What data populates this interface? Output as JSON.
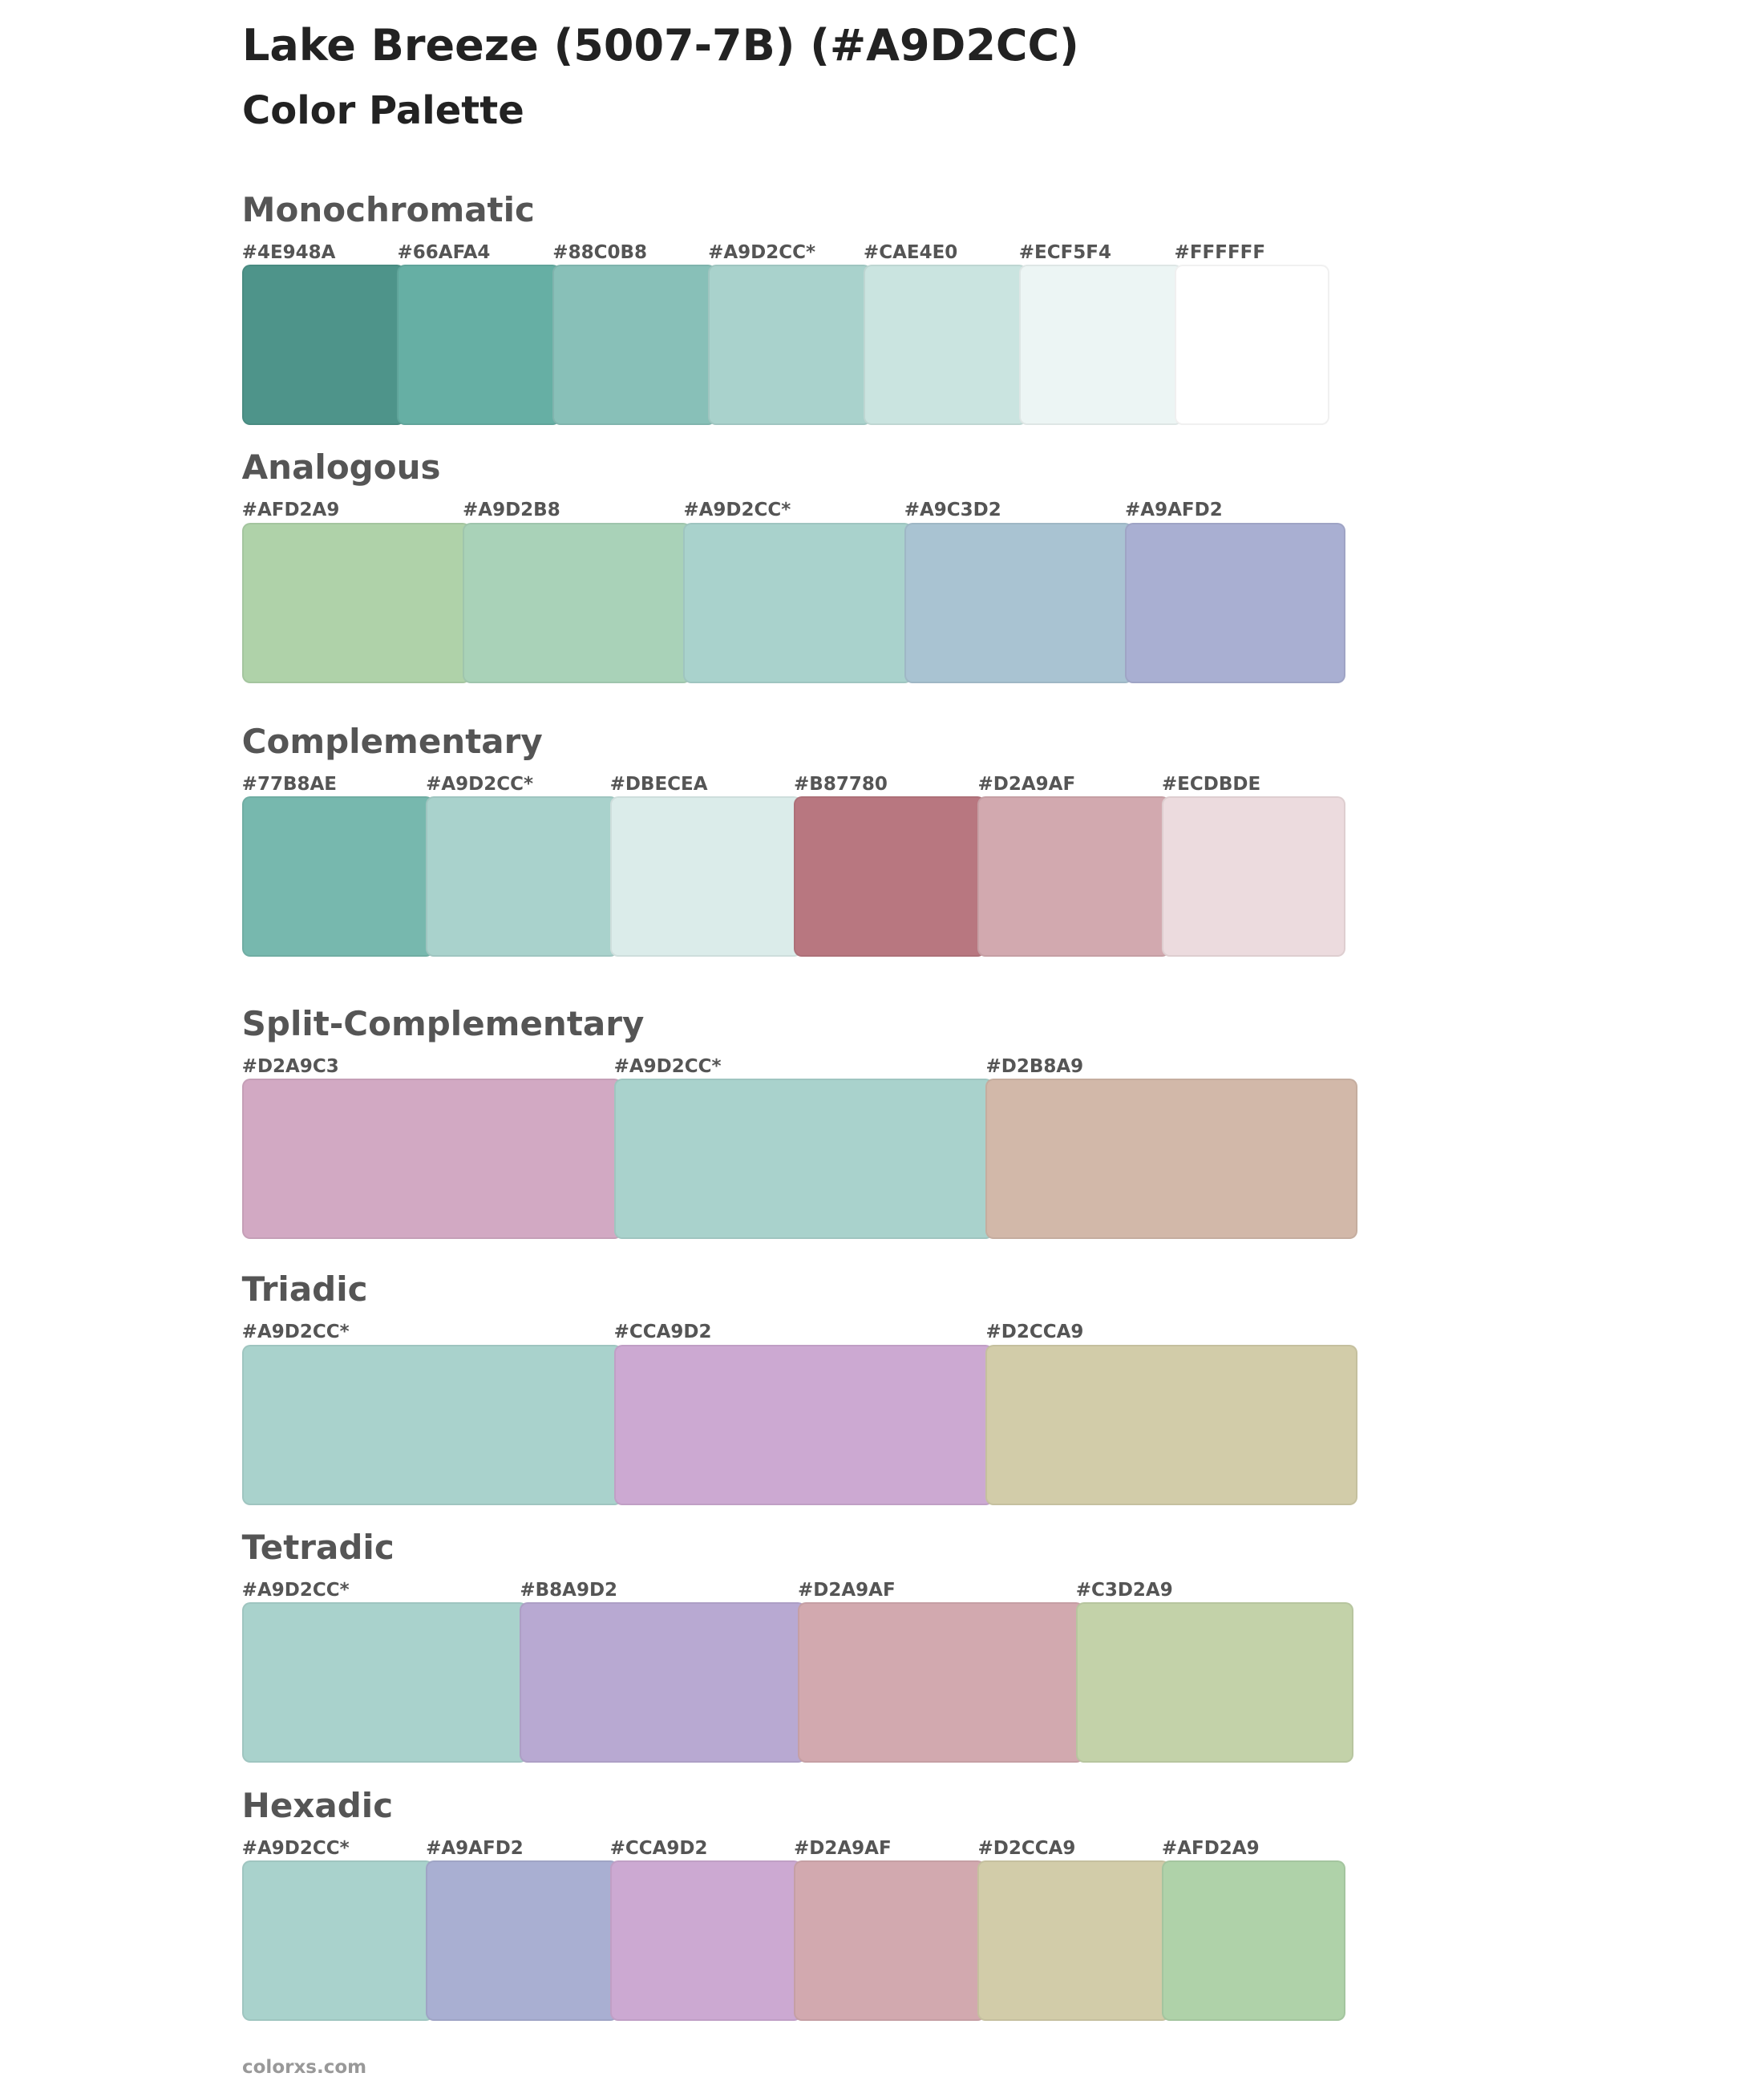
{
  "header": {
    "title": "Lake Breeze (5007-7B) (#A9D2CC)",
    "subtitle": "Color Palette"
  },
  "sections": [
    {
      "name": "Monochromatic",
      "swatches": [
        {
          "label": "#4E948A",
          "color": "#4E948A"
        },
        {
          "label": "#66AFA4",
          "color": "#66AFA4"
        },
        {
          "label": "#88C0B8",
          "color": "#88C0B8"
        },
        {
          "label": "#A9D2CC*",
          "color": "#A9D2CC"
        },
        {
          "label": "#CAE4E0",
          "color": "#CAE4E0"
        },
        {
          "label": "#ECF5F4",
          "color": "#ECF5F4"
        },
        {
          "label": "#FFFFFF",
          "color": "#FFFFFF"
        }
      ]
    },
    {
      "name": "Analogous",
      "swatches": [
        {
          "label": "#AFD2A9",
          "color": "#AFD2A9"
        },
        {
          "label": "#A9D2B8",
          "color": "#A9D2B8"
        },
        {
          "label": "#A9D2CC*",
          "color": "#A9D2CC"
        },
        {
          "label": "#A9C3D2",
          "color": "#A9C3D2"
        },
        {
          "label": "#A9AFD2",
          "color": "#A9AFD2"
        }
      ]
    },
    {
      "name": "Complementary",
      "swatches": [
        {
          "label": "#77B8AE",
          "color": "#77B8AE"
        },
        {
          "label": "#A9D2CC*",
          "color": "#A9D2CC"
        },
        {
          "label": "#DBECEA",
          "color": "#DBECEA"
        },
        {
          "label": "#B87780",
          "color": "#B87780"
        },
        {
          "label": "#D2A9AF",
          "color": "#D2A9AF"
        },
        {
          "label": "#ECDBDE",
          "color": "#ECDBDE"
        }
      ]
    },
    {
      "name": "Split-Complementary",
      "swatches": [
        {
          "label": "#D2A9C3",
          "color": "#D2A9C3"
        },
        {
          "label": "#A9D2CC*",
          "color": "#A9D2CC"
        },
        {
          "label": "#D2B8A9",
          "color": "#D2B8A9"
        }
      ]
    },
    {
      "name": "Triadic",
      "swatches": [
        {
          "label": "#A9D2CC*",
          "color": "#A9D2CC"
        },
        {
          "label": "#CCA9D2",
          "color": "#CCA9D2"
        },
        {
          "label": "#D2CCA9",
          "color": "#D2CCA9"
        }
      ]
    },
    {
      "name": "Tetradic",
      "swatches": [
        {
          "label": "#A9D2CC*",
          "color": "#A9D2CC"
        },
        {
          "label": "#B8A9D2",
          "color": "#B8A9D2"
        },
        {
          "label": "#D2A9AF",
          "color": "#D2A9AF"
        },
        {
          "label": "#C3D2A9",
          "color": "#C3D2A9"
        }
      ]
    },
    {
      "name": "Hexadic",
      "swatches": [
        {
          "label": "#A9D2CC*",
          "color": "#A9D2CC"
        },
        {
          "label": "#A9AFD2",
          "color": "#A9AFD2"
        },
        {
          "label": "#CCA9D2",
          "color": "#CCA9D2"
        },
        {
          "label": "#D2A9AF",
          "color": "#D2A9AF"
        },
        {
          "label": "#D2CCA9",
          "color": "#D2CCA9"
        },
        {
          "label": "#AFD2A9",
          "color": "#AFD2A9"
        }
      ]
    }
  ],
  "footer": "colorxs.com"
}
